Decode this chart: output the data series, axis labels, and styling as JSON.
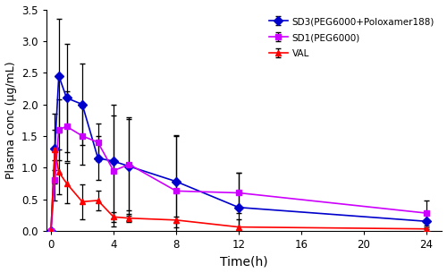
{
  "time": [
    0,
    0.25,
    0.5,
    1,
    2,
    3,
    4,
    5,
    8,
    12,
    24
  ],
  "sd3": [
    0,
    1.3,
    2.45,
    2.1,
    2.0,
    1.15,
    1.1,
    1.02,
    0.78,
    0.37,
    0.15
  ],
  "sd3_err": [
    0,
    0.55,
    0.9,
    0.85,
    0.65,
    0.35,
    0.9,
    0.78,
    0.72,
    0.55,
    0.12
  ],
  "sd1": [
    0,
    0.8,
    1.6,
    1.65,
    1.5,
    1.4,
    0.95,
    1.05,
    0.63,
    0.6,
    0.28
  ],
  "sd1_err": [
    0,
    0.32,
    0.48,
    0.55,
    0.45,
    0.3,
    0.88,
    0.72,
    0.88,
    0.32,
    0.2
  ],
  "val": [
    0,
    1.28,
    0.93,
    0.75,
    0.46,
    0.48,
    0.22,
    0.2,
    0.17,
    0.06,
    0.03
  ],
  "val_err": [
    0,
    0.32,
    0.35,
    0.32,
    0.28,
    0.16,
    0.08,
    0.06,
    0.05,
    0.12,
    0.03
  ],
  "sd3_color": "#0000cc",
  "sd1_color": "#cc00ff",
  "val_color": "#ff0000",
  "xlabel": "Time(h)",
  "ylabel": "Plasma conc (μg/mL)",
  "ylim": [
    0,
    3.5
  ],
  "xlim": [
    -0.3,
    25
  ],
  "xticks": [
    0,
    4,
    8,
    12,
    16,
    20,
    24
  ],
  "yticks": [
    0,
    0.5,
    1.0,
    1.5,
    2.0,
    2.5,
    3.0,
    3.5
  ],
  "legend_sd3": "SD3(PEG6000+Poloxamer188)",
  "legend_sd1": "SD1(PEG6000)",
  "legend_val": "VAL"
}
